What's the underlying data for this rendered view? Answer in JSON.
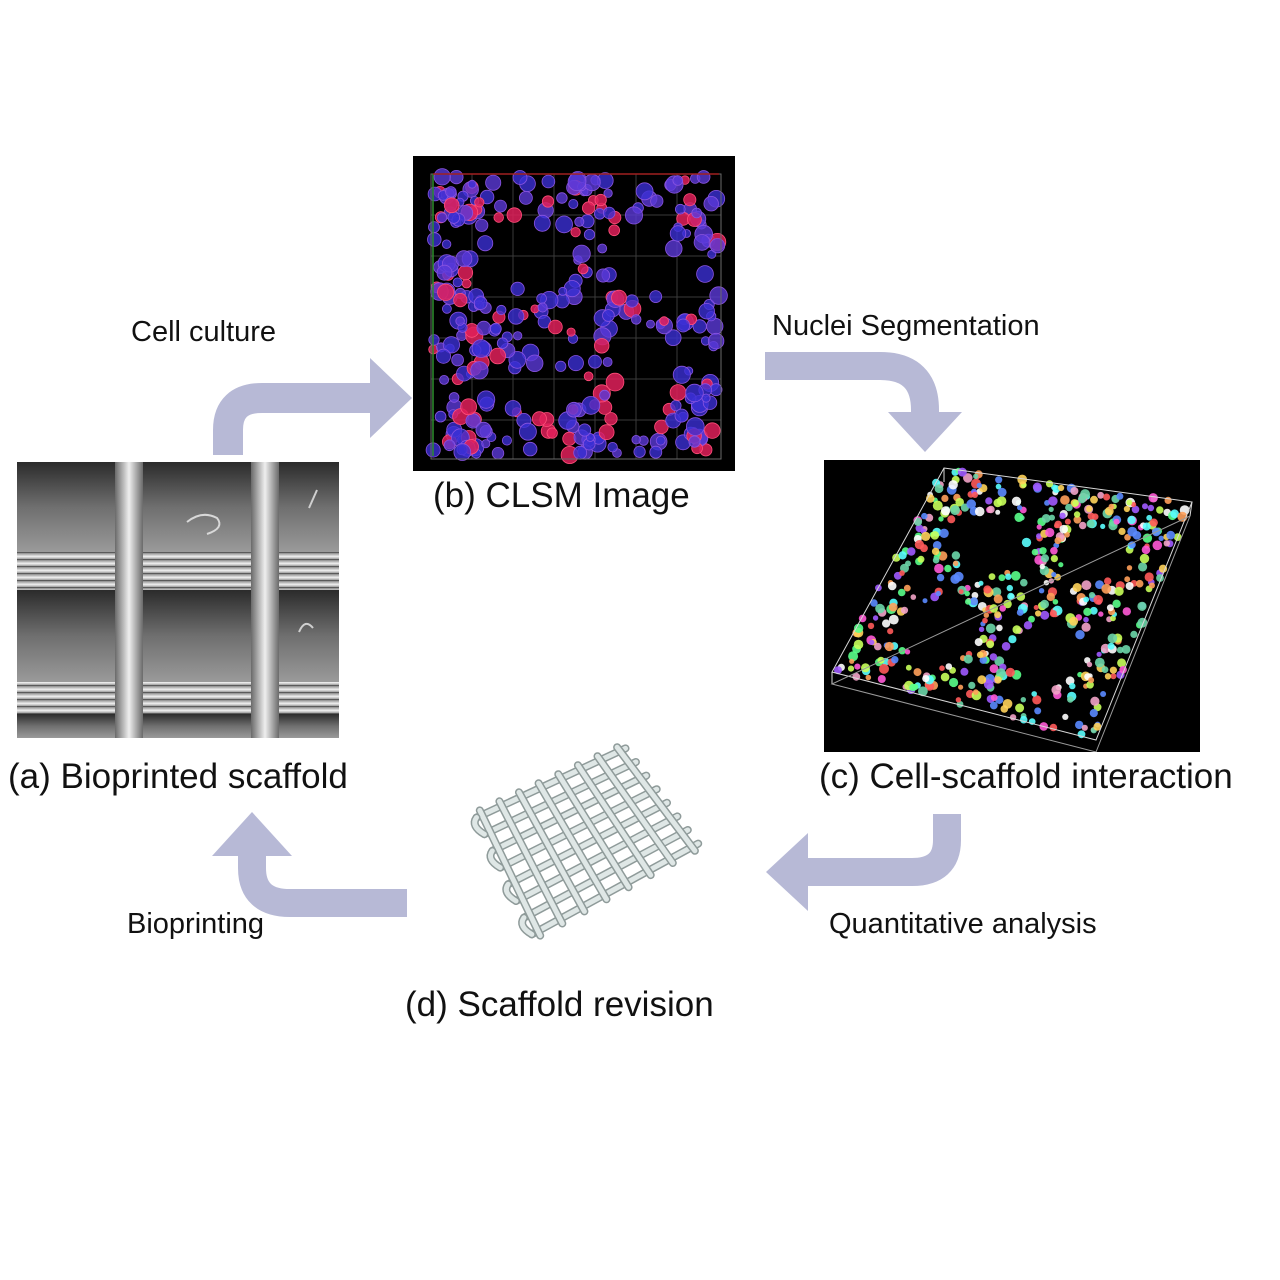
{
  "diagram": {
    "panels": {
      "a": {
        "caption": "(a) Bioprinted scaffold"
      },
      "b": {
        "caption": "(b) CLSM Image"
      },
      "c": {
        "caption": "(c) Cell-scaffold interaction"
      },
      "d": {
        "caption": "(d) Scaffold revision"
      }
    },
    "steps": {
      "culture": "Cell culture",
      "segmentation": "Nuclei Segmentation",
      "analysis": "Quantitative analysis",
      "printing": "Bioprinting"
    },
    "colors": {
      "arrow": "#b7b9d6",
      "background": "#ffffff",
      "image_bg": "#000000",
      "nuclei": "#3b2fd4",
      "membrane": "#e0205a",
      "scaffold_model": "#dfe7e6"
    }
  }
}
